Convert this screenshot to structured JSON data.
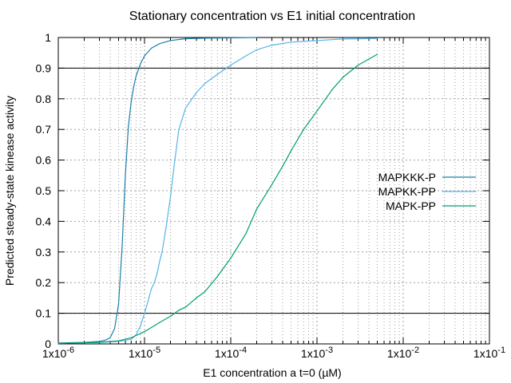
{
  "chart_data": {
    "type": "line",
    "title": "Stationary concentration vs E1 initial concentration",
    "xlabel": "E1 concentration a t=0 (µM)",
    "ylabel": "Predicted steady-state kinease activity",
    "x_scale": "log",
    "xlim": [
      1e-06,
      0.1
    ],
    "ylim": [
      0,
      1
    ],
    "x_ticks": [
      1e-06,
      1e-05,
      0.0001,
      0.001,
      0.01,
      0.1
    ],
    "x_tick_labels": [
      {
        "base": "1x10",
        "exp": "-6"
      },
      {
        "base": "1x10",
        "exp": "-5"
      },
      {
        "base": "1x10",
        "exp": "-4"
      },
      {
        "base": "1x10",
        "exp": "-3"
      },
      {
        "base": "1x10",
        "exp": "-2"
      },
      {
        "base": "1x10",
        "exp": "-1"
      }
    ],
    "y_ticks": [
      0,
      0.1,
      0.2,
      0.3,
      0.4,
      0.5,
      0.6,
      0.7,
      0.8,
      0.9,
      1
    ],
    "y_tick_labels": [
      "0",
      "0.1",
      "0.2",
      "0.3",
      "0.4",
      "0.5",
      "0.6",
      "0.7",
      "0.8",
      "0.9",
      "1"
    ],
    "grid": true,
    "reference_lines_y": [
      0.1,
      0.9
    ],
    "legend_position": "right",
    "series": [
      {
        "name": "MAPKKK-P",
        "color": "#1a7fa8",
        "x": [
          1e-06,
          2e-06,
          3e-06,
          3.5e-06,
          4e-06,
          4.5e-06,
          5e-06,
          5.5e-06,
          6e-06,
          6.5e-06,
          7e-06,
          7.5e-06,
          8e-06,
          9e-06,
          1e-05,
          1.2e-05,
          1.5e-05,
          2e-05,
          3e-05,
          5e-05,
          0.0001,
          0.0002
        ],
        "y": [
          0.003,
          0.005,
          0.008,
          0.012,
          0.02,
          0.05,
          0.13,
          0.32,
          0.55,
          0.71,
          0.79,
          0.84,
          0.875,
          0.915,
          0.94,
          0.965,
          0.98,
          0.99,
          0.996,
          0.998,
          0.999,
          1.0
        ]
      },
      {
        "name": "MAPKK-PP",
        "color": "#56b4e9",
        "x": [
          1e-06,
          3e-06,
          5e-06,
          7e-06,
          8e-06,
          9e-06,
          1e-05,
          1.1e-05,
          1.2e-05,
          1.3e-05,
          1.4e-05,
          1.5e-05,
          1.6e-05,
          1.8e-05,
          2e-05,
          2.2e-05,
          2.5e-05,
          3e-05,
          4e-05,
          5e-05,
          7e-05,
          0.0001,
          0.00015,
          0.0002,
          0.0003,
          0.0005,
          0.001,
          0.002,
          0.005
        ],
        "y": [
          0.002,
          0.005,
          0.008,
          0.015,
          0.03,
          0.06,
          0.1,
          0.14,
          0.18,
          0.2,
          0.23,
          0.27,
          0.3,
          0.39,
          0.48,
          0.58,
          0.7,
          0.77,
          0.82,
          0.85,
          0.88,
          0.91,
          0.94,
          0.96,
          0.975,
          0.985,
          0.99,
          0.995,
          0.997
        ]
      },
      {
        "name": "MAPK-PP",
        "color": "#009e73",
        "x": [
          1e-06,
          3e-06,
          5e-06,
          7e-06,
          1e-05,
          1.5e-05,
          2e-05,
          2.5e-05,
          3e-05,
          4e-05,
          5e-05,
          7e-05,
          0.0001,
          0.00015,
          0.0002,
          0.0003,
          0.0004,
          0.0005,
          0.0007,
          0.001,
          0.0015,
          0.002,
          0.003,
          0.005
        ],
        "y": [
          0.002,
          0.005,
          0.01,
          0.02,
          0.04,
          0.07,
          0.09,
          0.11,
          0.12,
          0.15,
          0.17,
          0.22,
          0.28,
          0.36,
          0.44,
          0.52,
          0.58,
          0.63,
          0.7,
          0.76,
          0.83,
          0.87,
          0.91,
          0.945
        ]
      }
    ]
  }
}
